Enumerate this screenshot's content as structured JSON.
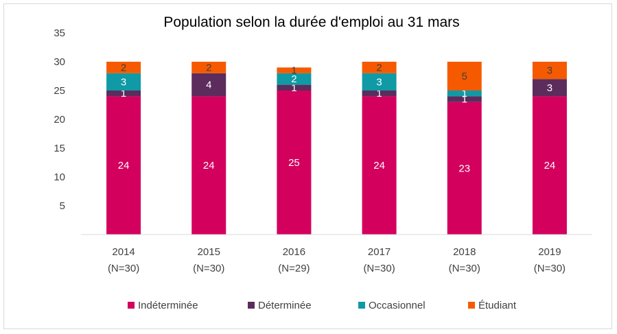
{
  "chart_data": {
    "type": "bar",
    "stacked": true,
    "title": "Population selon la durée d'emploi au 31 mars",
    "xlabel": "",
    "ylabel": "",
    "ylim": [
      0,
      35
    ],
    "yticks": [
      5,
      10,
      15,
      20,
      25,
      30,
      35
    ],
    "grid": false,
    "legend_position": "bottom",
    "categories": [
      {
        "year": "2014",
        "n": "(N=30)"
      },
      {
        "year": "2015",
        "n": "(N=30)"
      },
      {
        "year": "2016",
        "n": "(N=29)"
      },
      {
        "year": "2017",
        "n": "(N=30)"
      },
      {
        "year": "2018",
        "n": "(N=30)"
      },
      {
        "year": "2019",
        "n": "(N=30)"
      }
    ],
    "series": [
      {
        "name": "Indéterminée",
        "color": "#d3005e",
        "label_color": "#ffffff",
        "values": [
          24,
          24,
          25,
          24,
          23,
          24
        ]
      },
      {
        "name": "Déterminée",
        "color": "#5b2c5c",
        "label_color": "#ffffff",
        "values": [
          1,
          4,
          1,
          1,
          1,
          3
        ]
      },
      {
        "name": "Occasionnel",
        "color": "#0f9aa5",
        "label_color": "#ffffff",
        "values": [
          3,
          0,
          2,
          3,
          1,
          0
        ]
      },
      {
        "name": "Étudiant",
        "color": "#f55a00",
        "label_color": "#404040",
        "values": [
          2,
          2,
          1,
          2,
          5,
          3
        ]
      }
    ],
    "value_labels": [
      [
        "24",
        "24",
        "25",
        "24",
        "23",
        "24"
      ],
      [
        "1",
        "4",
        "1",
        "1",
        "1",
        "3"
      ],
      [
        "3",
        "",
        "2",
        "3",
        "1",
        ""
      ],
      [
        "2",
        "2",
        "1",
        "2",
        "5",
        "3"
      ]
    ]
  }
}
